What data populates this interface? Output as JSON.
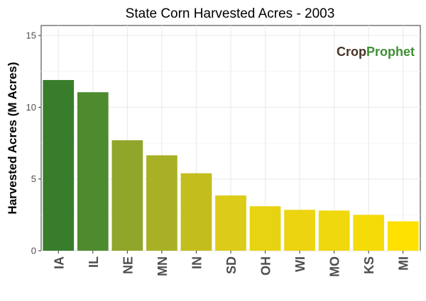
{
  "chart_data": {
    "type": "bar",
    "title": "State Corn Harvested Acres - 2003",
    "xlabel": "",
    "ylabel": "Harvested Acres (M Acres)",
    "categories": [
      "IA",
      "IL",
      "NE",
      "MN",
      "IN",
      "SD",
      "OH",
      "WI",
      "MO",
      "KS",
      "MI"
    ],
    "values": [
      11.9,
      11.05,
      7.7,
      6.65,
      5.4,
      3.85,
      3.1,
      2.85,
      2.8,
      2.5,
      2.05
    ],
    "ylim": [
      0,
      15.7
    ],
    "yticks": [
      0,
      5,
      10,
      15
    ],
    "grid": true,
    "legend": "none",
    "bar_colors": [
      "#387d2b",
      "#4e8a2e",
      "#8fa62a",
      "#a8b025",
      "#c4bd1e",
      "#dccb17",
      "#e8d313",
      "#ecd510",
      "#efd80d",
      "#f5db07",
      "#fde101"
    ]
  },
  "logo": {
    "text_dark": "Crop",
    "text_green": "Prophet",
    "color_dark": "#4a3426",
    "color_green": "#3f8f35"
  }
}
